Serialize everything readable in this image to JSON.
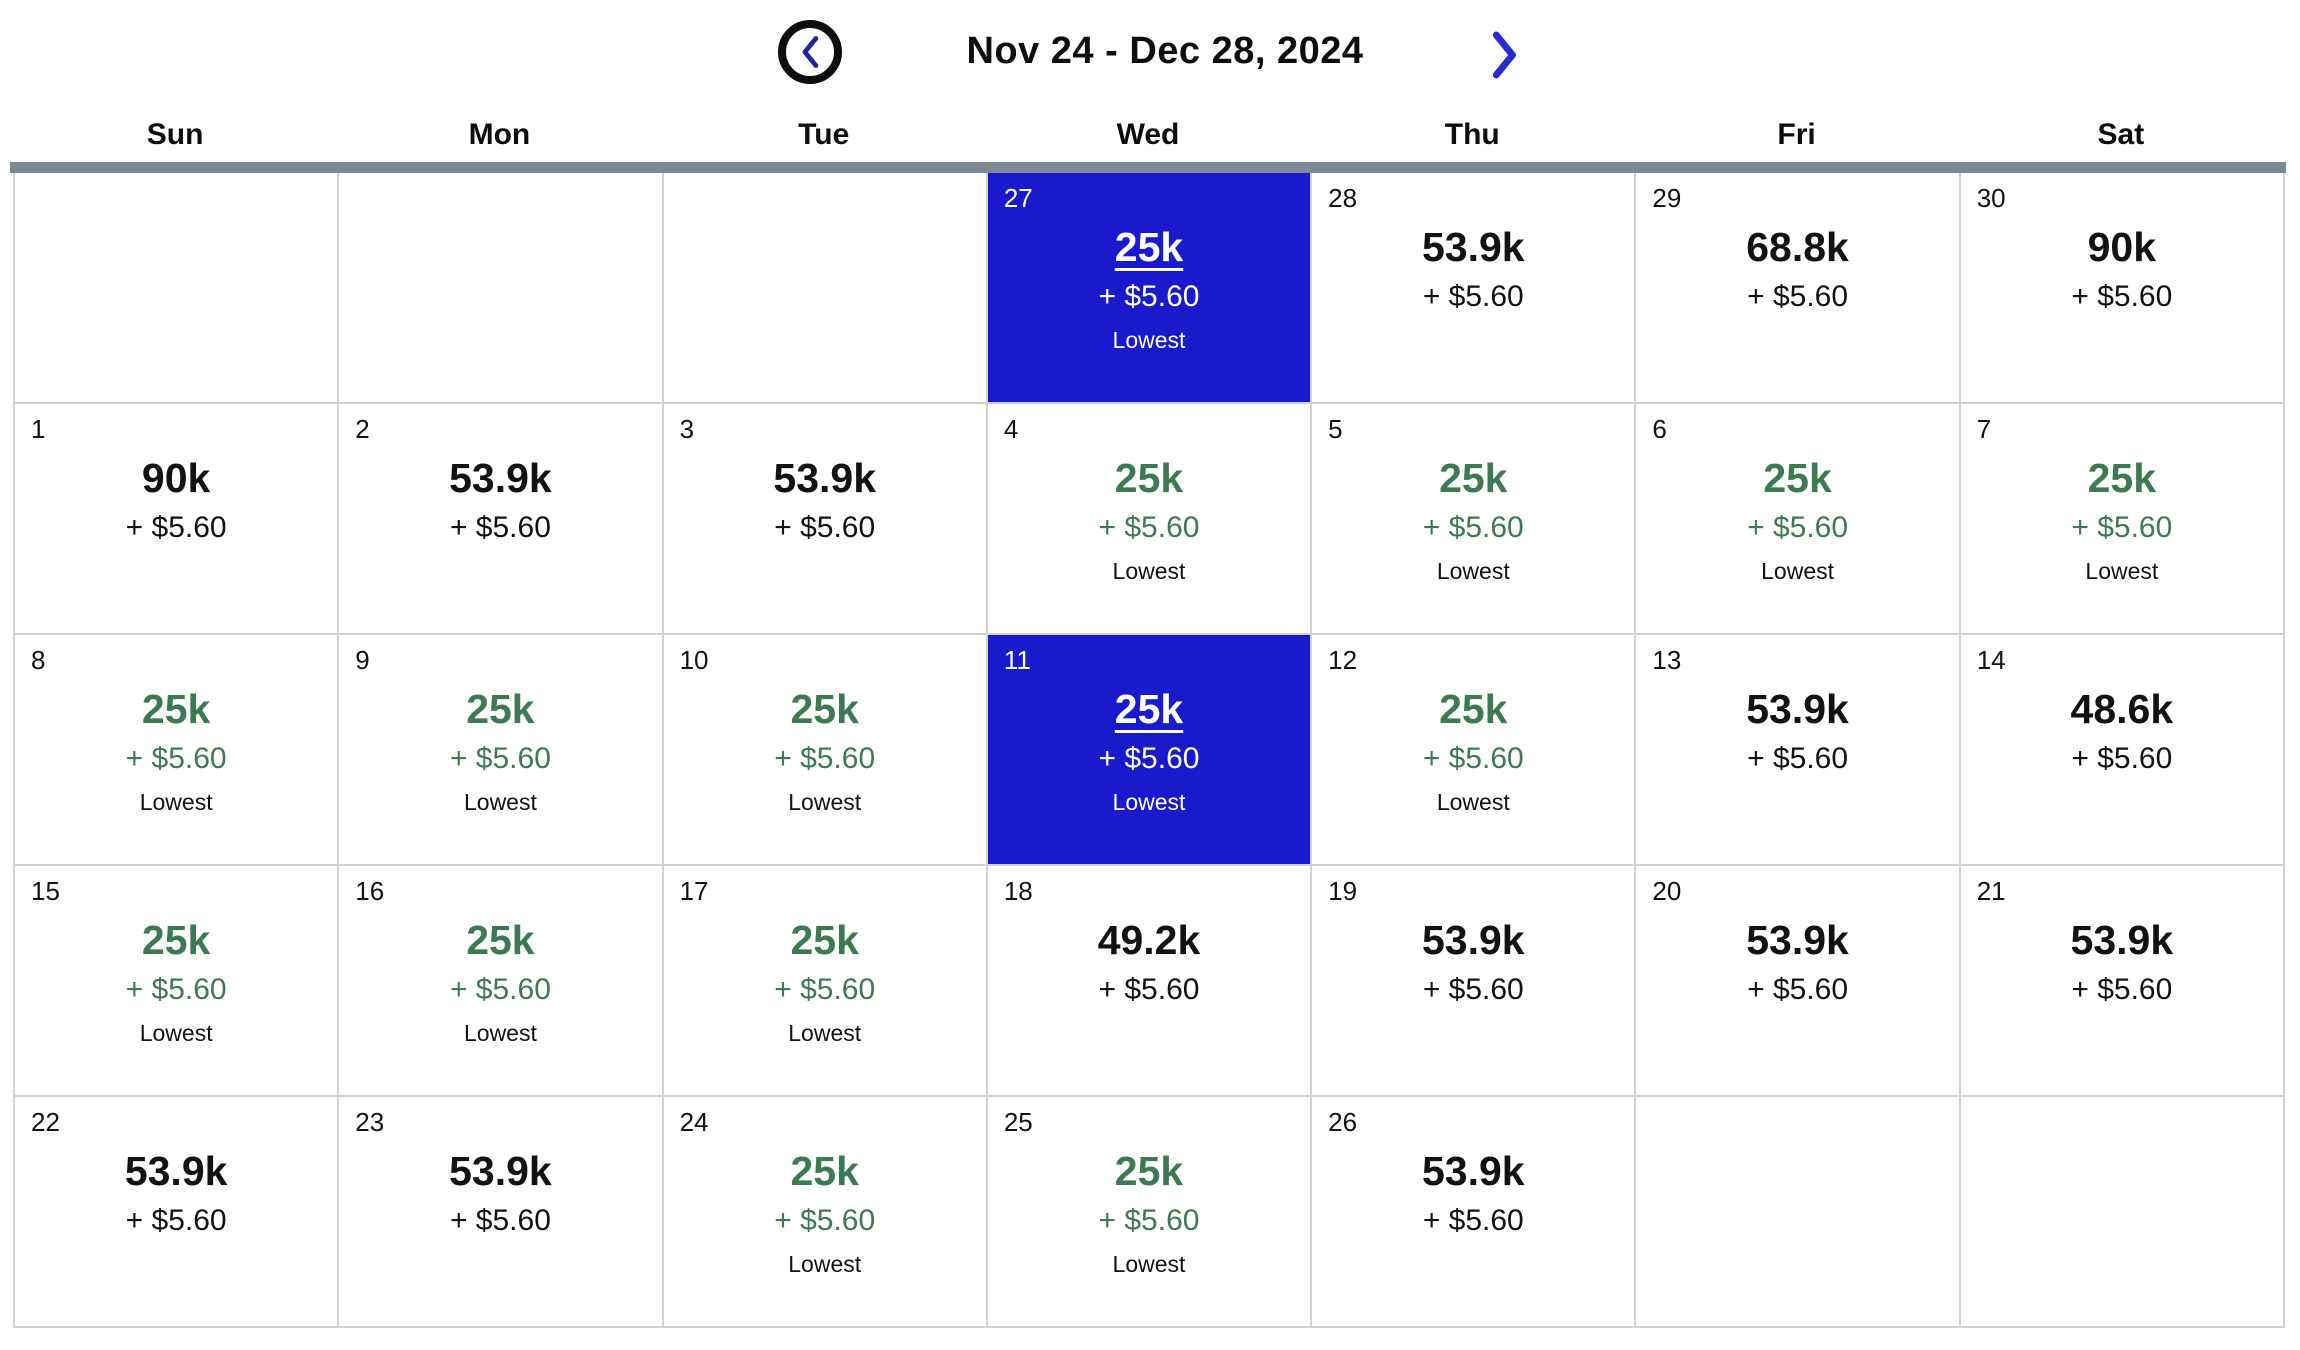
{
  "header": {
    "title": "Nov 24 - Dec 28, 2024",
    "prev_button": "previous date range",
    "next_button": "next date range"
  },
  "weekdays": [
    "Sun",
    "Mon",
    "Tue",
    "Wed",
    "Thu",
    "Fri",
    "Sat"
  ],
  "colors": {
    "selected_bg": "#1a1acd",
    "lowest_green": "#3d7a51",
    "bar_gray": "#7f8993",
    "grid_gray": "#d2d2d2",
    "text_black": "#121212",
    "chevron_left_blue": "#22229e",
    "chevron_right_blue": "#2a2ad2",
    "circle_black": "#0d0d0d"
  },
  "calendar": {
    "cells": [
      {
        "state": "empty"
      },
      {
        "state": "empty"
      },
      {
        "state": "empty"
      },
      {
        "day": "27",
        "miles": "25k",
        "fees": "+ $5.60",
        "tag": "Lowest",
        "state": "selected"
      },
      {
        "day": "28",
        "miles": "53.9k",
        "fees": "+ $5.60",
        "state": "standard"
      },
      {
        "day": "29",
        "miles": "68.8k",
        "fees": "+ $5.60",
        "state": "standard"
      },
      {
        "day": "30",
        "miles": "90k",
        "fees": "+ $5.60",
        "state": "standard"
      },
      {
        "day": "1",
        "miles": "90k",
        "fees": "+ $5.60",
        "state": "standard"
      },
      {
        "day": "2",
        "miles": "53.9k",
        "fees": "+ $5.60",
        "state": "standard"
      },
      {
        "day": "3",
        "miles": "53.9k",
        "fees": "+ $5.60",
        "state": "standard"
      },
      {
        "day": "4",
        "miles": "25k",
        "fees": "+ $5.60",
        "tag": "Lowest",
        "state": "lowest"
      },
      {
        "day": "5",
        "miles": "25k",
        "fees": "+ $5.60",
        "tag": "Lowest",
        "state": "lowest"
      },
      {
        "day": "6",
        "miles": "25k",
        "fees": "+ $5.60",
        "tag": "Lowest",
        "state": "lowest"
      },
      {
        "day": "7",
        "miles": "25k",
        "fees": "+ $5.60",
        "tag": "Lowest",
        "state": "lowest"
      },
      {
        "day": "8",
        "miles": "25k",
        "fees": "+ $5.60",
        "tag": "Lowest",
        "state": "lowest"
      },
      {
        "day": "9",
        "miles": "25k",
        "fees": "+ $5.60",
        "tag": "Lowest",
        "state": "lowest"
      },
      {
        "day": "10",
        "miles": "25k",
        "fees": "+ $5.60",
        "tag": "Lowest",
        "state": "lowest"
      },
      {
        "day": "11",
        "miles": "25k",
        "fees": "+ $5.60",
        "tag": "Lowest",
        "state": "selected"
      },
      {
        "day": "12",
        "miles": "25k",
        "fees": "+ $5.60",
        "tag": "Lowest",
        "state": "lowest"
      },
      {
        "day": "13",
        "miles": "53.9k",
        "fees": "+ $5.60",
        "state": "standard"
      },
      {
        "day": "14",
        "miles": "48.6k",
        "fees": "+ $5.60",
        "state": "standard"
      },
      {
        "day": "15",
        "miles": "25k",
        "fees": "+ $5.60",
        "tag": "Lowest",
        "state": "lowest"
      },
      {
        "day": "16",
        "miles": "25k",
        "fees": "+ $5.60",
        "tag": "Lowest",
        "state": "lowest"
      },
      {
        "day": "17",
        "miles": "25k",
        "fees": "+ $5.60",
        "tag": "Lowest",
        "state": "lowest"
      },
      {
        "day": "18",
        "miles": "49.2k",
        "fees": "+ $5.60",
        "state": "standard"
      },
      {
        "day": "19",
        "miles": "53.9k",
        "fees": "+ $5.60",
        "state": "standard"
      },
      {
        "day": "20",
        "miles": "53.9k",
        "fees": "+ $5.60",
        "state": "standard"
      },
      {
        "day": "21",
        "miles": "53.9k",
        "fees": "+ $5.60",
        "state": "standard"
      },
      {
        "day": "22",
        "miles": "53.9k",
        "fees": "+ $5.60",
        "state": "standard"
      },
      {
        "day": "23",
        "miles": "53.9k",
        "fees": "+ $5.60",
        "state": "standard"
      },
      {
        "day": "24",
        "miles": "25k",
        "fees": "+ $5.60",
        "tag": "Lowest",
        "state": "lowest"
      },
      {
        "day": "25",
        "miles": "25k",
        "fees": "+ $5.60",
        "tag": "Lowest",
        "state": "lowest"
      },
      {
        "day": "26",
        "miles": "53.9k",
        "fees": "+ $5.60",
        "state": "standard"
      },
      {
        "state": "empty"
      },
      {
        "state": "empty"
      }
    ]
  }
}
